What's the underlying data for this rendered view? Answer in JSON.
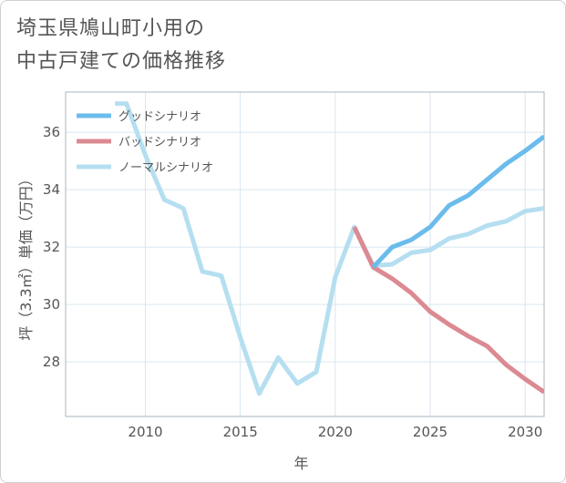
{
  "title_lines": [
    "埼玉県鳩山町小用の",
    "中古戸建ての価格推移"
  ],
  "chart_data": {
    "type": "line",
    "title": "埼玉県鳩山町小用の中古戸建ての価格推移",
    "xlabel": "年",
    "ylabel": "坪（3.3㎡）単価（万円）",
    "xlim": [
      2005.8,
      2031
    ],
    "ylim": [
      26.1,
      37.4
    ],
    "xticks": [
      2010,
      2015,
      2020,
      2025,
      2030
    ],
    "yticks": [
      28,
      30,
      32,
      34,
      36
    ],
    "grid": true,
    "legend_position": "top-left",
    "series": [
      {
        "name": "グッドシナリオ",
        "color": "#6bbcec",
        "x": [
          2022,
          2023,
          2024,
          2025,
          2026,
          2027,
          2028,
          2029,
          2030,
          2031
        ],
        "y": [
          31.3,
          32.0,
          32.25,
          32.7,
          33.45,
          33.8,
          34.35,
          34.9,
          35.35,
          35.85
        ]
      },
      {
        "name": "バッドシナリオ",
        "color": "#dc8a92",
        "x": [
          2021,
          2022,
          2023,
          2024,
          2025,
          2026,
          2027,
          2028,
          2029,
          2030,
          2031
        ],
        "y": [
          32.7,
          31.3,
          30.9,
          30.4,
          29.75,
          29.3,
          28.9,
          28.55,
          27.9,
          27.4,
          26.95
        ]
      },
      {
        "name": "ノーマルシナリオ",
        "color": "#b5dff0",
        "x": [
          2008.4,
          2009,
          2010,
          2011,
          2012,
          2013,
          2014,
          2015,
          2016,
          2017,
          2018,
          2019,
          2020,
          2021,
          2022,
          2023,
          2024,
          2025,
          2026,
          2027,
          2028,
          2029,
          2030,
          2031
        ],
        "y": [
          37.0,
          37.0,
          35.2,
          33.65,
          33.35,
          31.15,
          31.0,
          28.85,
          26.9,
          28.15,
          27.25,
          27.65,
          30.95,
          32.7,
          31.35,
          31.4,
          31.8,
          31.9,
          32.3,
          32.45,
          32.75,
          32.9,
          33.25,
          33.35
        ]
      }
    ]
  }
}
